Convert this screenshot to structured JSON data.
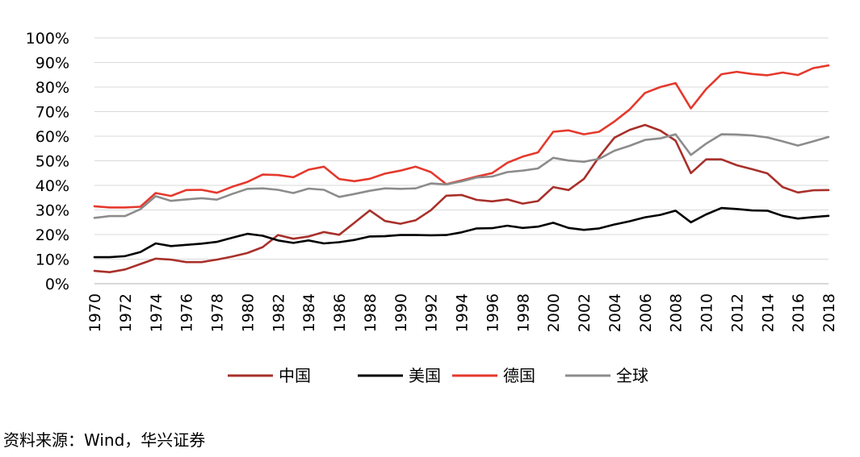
{
  "chart_data": {
    "type": "line",
    "title": "",
    "xlabel": "",
    "ylabel": "",
    "ylim": [
      0,
      100
    ],
    "ytick_suffix": "%",
    "yticks": [
      0,
      10,
      20,
      30,
      40,
      50,
      60,
      70,
      80,
      90,
      100
    ],
    "xticks": [
      1970,
      1972,
      1974,
      1976,
      1978,
      1980,
      1982,
      1984,
      1986,
      1988,
      1990,
      1992,
      1994,
      1996,
      1998,
      2000,
      2002,
      2004,
      2006,
      2008,
      2010,
      2012,
      2014,
      2016,
      2018
    ],
    "grid": "horizontal",
    "legend_position": "bottom",
    "x": [
      1970,
      1971,
      1972,
      1973,
      1974,
      1975,
      1976,
      1977,
      1978,
      1979,
      1980,
      1981,
      1982,
      1983,
      1984,
      1985,
      1986,
      1987,
      1988,
      1989,
      1990,
      1991,
      1992,
      1993,
      1994,
      1995,
      1996,
      1997,
      1998,
      1999,
      2000,
      2001,
      2002,
      2003,
      2004,
      2005,
      2006,
      2007,
      2008,
      2009,
      2010,
      2011,
      2012,
      2013,
      2014,
      2015,
      2016,
      2017,
      2018
    ],
    "series": [
      {
        "name": "中国",
        "color": "#a8302a",
        "values": [
          5.2,
          4.7,
          5.8,
          8,
          10.2,
          9.8,
          8.8,
          8.8,
          9.8,
          11,
          12.5,
          14.9,
          19.8,
          18.3,
          19.2,
          21,
          19.9,
          24.8,
          29.8,
          25.5,
          24.4,
          25.8,
          29.9,
          35.8,
          36.1,
          34.1,
          33.5,
          34.3,
          32.6,
          33.6,
          39.3,
          38.1,
          42.6,
          51.6,
          59.4,
          62.6,
          64.6,
          62.3,
          58.2,
          45,
          50.6,
          50.6,
          48.2,
          46.6,
          44.9,
          39.3,
          37.1,
          38,
          38.1
        ]
      },
      {
        "name": "美国",
        "color": "#000000",
        "values": [
          10.8,
          10.8,
          11.2,
          12.9,
          16.4,
          15.3,
          15.8,
          16.3,
          17,
          18.7,
          20.3,
          19.5,
          17.6,
          16.6,
          17.6,
          16.4,
          16.9,
          17.8,
          19.2,
          19.3,
          19.8,
          19.8,
          19.7,
          19.8,
          20.9,
          22.5,
          22.6,
          23.6,
          22.7,
          23.2,
          24.8,
          22.7,
          21.9,
          22.5,
          24.1,
          25.4,
          27,
          28,
          29.7,
          25,
          28.2,
          30.8,
          30.4,
          29.8,
          29.7,
          27.6,
          26.5,
          27.1,
          27.6
        ]
      },
      {
        "name": "德国",
        "color": "#e5392d",
        "values": [
          31.5,
          31,
          31,
          31.3,
          36.9,
          35.7,
          38.1,
          38.2,
          37,
          39.4,
          41.4,
          44.4,
          44.2,
          43.3,
          46.4,
          47.6,
          42.6,
          41.7,
          42.7,
          44.8,
          46,
          47.6,
          45.4,
          40.5,
          42,
          43.6,
          45,
          49.2,
          51.7,
          53.4,
          61.8,
          62.4,
          60.8,
          61.8,
          66,
          70.9,
          77.6,
          80,
          81.6,
          71.3,
          79.2,
          85.2,
          86.2,
          85.3,
          84.8,
          85.9,
          84.9,
          87.7,
          88.8
        ]
      },
      {
        "name": "全球",
        "color": "#8c8c8c",
        "values": [
          26.8,
          27.5,
          27.5,
          30.3,
          35.6,
          33.7,
          34.3,
          34.8,
          34.2,
          36.5,
          38.6,
          38.8,
          38.2,
          36.9,
          38.7,
          38.2,
          35.3,
          36.5,
          37.8,
          38.8,
          38.6,
          38.8,
          40.8,
          40.4,
          41.6,
          43.2,
          43.6,
          45.4,
          46,
          46.9,
          51.2,
          50.1,
          49.6,
          50.8,
          54.1,
          56.1,
          58.5,
          59.1,
          60.8,
          52.4,
          57,
          60.8,
          60.7,
          60.3,
          59.5,
          57.9,
          56.2,
          57.9,
          59.7
        ]
      }
    ]
  },
  "source_text": "资料来源：Wind，华兴证券"
}
